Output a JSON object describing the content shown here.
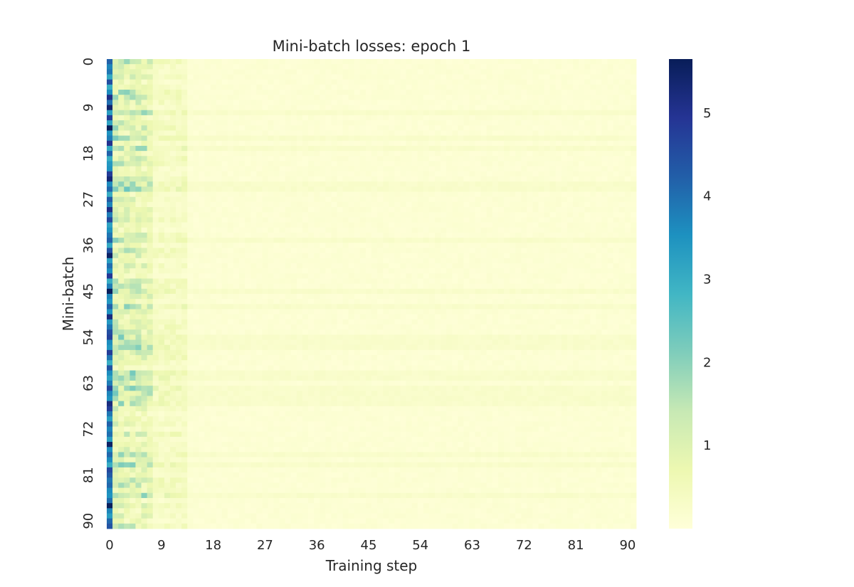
{
  "chart_data": {
    "type": "heatmap",
    "title": "Mini-batch losses: epoch 1",
    "xlabel": "Training step",
    "ylabel": "Mini-batch",
    "n_rows": 92,
    "n_cols": 92,
    "x_tick_values": [
      0,
      9,
      18,
      27,
      36,
      45,
      54,
      63,
      72,
      81,
      90
    ],
    "y_tick_values": [
      0,
      9,
      18,
      27,
      36,
      45,
      54,
      63,
      72,
      81,
      90
    ],
    "colorbar": {
      "vmin": 0.0,
      "vmax": 5.65,
      "ticks": [
        1,
        2,
        3,
        4,
        5
      ],
      "colormap": "YlGnBu",
      "stops": [
        "#ffffd9",
        "#edf8b1",
        "#c7e9b4",
        "#7fcdbb",
        "#41b6c4",
        "#1d91c0",
        "#225ea8",
        "#253494",
        "#081d58"
      ]
    },
    "values_description": "Column 0 holds the largest losses (about 3 to 5.6); steps 1-8 mostly 0.5 to 2; later steps about 0.05 to 0.35.",
    "first_step_loss": [
      4.2,
      3.7,
      3.9,
      3.1,
      4.5,
      3.0,
      3.6,
      5.1,
      4.0,
      5.4,
      3.3,
      4.8,
      3.2,
      5.6,
      3.5,
      3.8,
      5.0,
      3.1,
      4.2,
      3.0,
      3.4,
      3.5,
      4.8,
      5.3,
      3.6,
      4.1,
      3.0,
      4.3,
      3.7,
      5.1,
      3.8,
      4.6,
      3.2,
      3.5,
      3.9,
      4.2,
      3.1,
      4.4,
      5.5,
      3.3,
      4.0,
      3.6,
      4.9,
      3.0,
      3.8,
      5.6,
      3.7,
      3.4,
      4.2,
      3.5,
      5.2,
      3.4,
      3.9,
      4.5,
      4.7,
      3.6,
      3.4,
      4.8,
      3.9,
      3.0,
      4.4,
      3.6,
      3.2,
      3.8,
      4.6,
      3.7,
      3.5,
      5.2,
      4.8,
      3.9,
      3.3,
      4.2,
      3.7,
      4.0,
      3.3,
      5.5,
      3.6,
      4.1,
      3.6,
      3.0,
      4.6,
      4.3,
      3.9,
      4.1,
      3.6,
      3.5,
      4.0,
      5.6,
      3.7,
      3.3,
      4.1,
      4.4
    ]
  }
}
